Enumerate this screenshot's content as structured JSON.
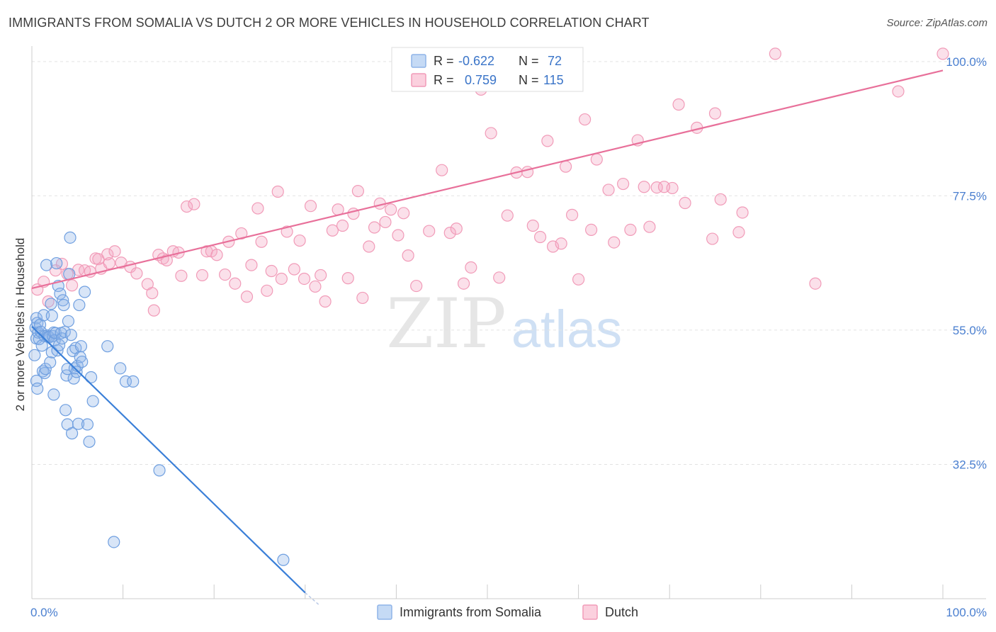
{
  "title": "IMMIGRANTS FROM SOMALIA VS DUTCH 2 OR MORE VEHICLES IN HOUSEHOLD CORRELATION CHART",
  "source": "Source: ZipAtlas.com",
  "watermark": {
    "zip": "ZIP",
    "atlas": "atlas"
  },
  "legend_top": [
    {
      "r_label": "R =",
      "r_value": "-0.622",
      "n_label": "N =",
      "n_value": "72",
      "color": "#8fb4e8",
      "fill": "#c5daf5"
    },
    {
      "r_label": "R =",
      "r_value": "0.759",
      "n_label": "N =",
      "n_value": "115",
      "color": "#f19bb8",
      "fill": "#fbd0de"
    }
  ],
  "legend_bottom": [
    {
      "label": "Immigrants from Somalia",
      "color": "#8fb4e8",
      "fill": "#c5daf5"
    },
    {
      "label": "Dutch",
      "color": "#f19bb8",
      "fill": "#fbd0de"
    }
  ],
  "chart_data": {
    "type": "scatter",
    "xlabel": "",
    "ylabel": "2 or more Vehicles in Household",
    "xlim": [
      0,
      100
    ],
    "ylim": [
      10,
      102
    ],
    "x_tick_labels": [
      {
        "value": 0,
        "label": "0.0%"
      },
      {
        "value": 100,
        "label": "100.0%"
      }
    ],
    "y_tick_labels": [
      {
        "value": 100,
        "label": "100.0%"
      },
      {
        "value": 77.5,
        "label": "77.5%"
      },
      {
        "value": 55,
        "label": "55.0%"
      },
      {
        "value": 32.5,
        "label": "32.5%"
      }
    ],
    "grid": true,
    "colors": {
      "somalia": "#3a7fd8",
      "dutch": "#e8709a"
    },
    "series": [
      {
        "name": "Immigrants from Somalia",
        "trend": {
          "x1": 0.0,
          "y1": 55.6,
          "x2": 30.0,
          "y2": 11.0,
          "dash_to_x": 31.5,
          "dash_to_y": 9.0
        },
        "points": [
          [
            0.3,
            50.8
          ],
          [
            0.4,
            55.4
          ],
          [
            0.5,
            57.0
          ],
          [
            0.5,
            53.6
          ],
          [
            0.5,
            46.5
          ],
          [
            0.6,
            45.2
          ],
          [
            0.6,
            56.2
          ],
          [
            0.7,
            54.6
          ],
          [
            0.8,
            53.5
          ],
          [
            0.9,
            55.9
          ],
          [
            1.0,
            54.7
          ],
          [
            1.1,
            52.4
          ],
          [
            1.2,
            48.1
          ],
          [
            1.3,
            57.5
          ],
          [
            1.4,
            54.0
          ],
          [
            1.4,
            47.8
          ],
          [
            1.5,
            48.5
          ],
          [
            1.6,
            65.9
          ],
          [
            1.7,
            54.1
          ],
          [
            1.8,
            53.9
          ],
          [
            1.9,
            53.8
          ],
          [
            2.0,
            49.6
          ],
          [
            2.1,
            59.4
          ],
          [
            2.2,
            57.4
          ],
          [
            2.2,
            51.3
          ],
          [
            2.3,
            54.0
          ],
          [
            2.4,
            44.2
          ],
          [
            2.4,
            54.6
          ],
          [
            2.5,
            53.3
          ],
          [
            2.6,
            54.5
          ],
          [
            2.7,
            66.2
          ],
          [
            2.8,
            51.6
          ],
          [
            2.9,
            62.4
          ],
          [
            3.0,
            52.5
          ],
          [
            3.1,
            61.1
          ],
          [
            3.2,
            54.5
          ],
          [
            3.3,
            53.6
          ],
          [
            3.4,
            60.0
          ],
          [
            3.5,
            59.2
          ],
          [
            3.6,
            54.7
          ],
          [
            3.7,
            41.6
          ],
          [
            3.8,
            47.4
          ],
          [
            3.9,
            48.5
          ],
          [
            3.9,
            39.2
          ],
          [
            4.0,
            56.5
          ],
          [
            4.1,
            64.4
          ],
          [
            4.2,
            70.5
          ],
          [
            4.3,
            54.2
          ],
          [
            4.4,
            37.7
          ],
          [
            4.5,
            51.5
          ],
          [
            4.6,
            46.9
          ],
          [
            4.7,
            48.6
          ],
          [
            4.8,
            52.0
          ],
          [
            4.9,
            48.0
          ],
          [
            5.0,
            49.0
          ],
          [
            5.1,
            39.3
          ],
          [
            5.2,
            59.2
          ],
          [
            5.3,
            50.5
          ],
          [
            5.4,
            52.3
          ],
          [
            5.5,
            49.7
          ],
          [
            5.8,
            61.4
          ],
          [
            6.1,
            39.2
          ],
          [
            6.5,
            47.1
          ],
          [
            6.7,
            43.1
          ],
          [
            6.3,
            36.3
          ],
          [
            8.3,
            52.3
          ],
          [
            9.7,
            48.6
          ],
          [
            10.3,
            46.4
          ],
          [
            11.1,
            46.4
          ],
          [
            14.0,
            31.5
          ],
          [
            9.0,
            19.5
          ],
          [
            27.6,
            16.5
          ]
        ]
      },
      {
        "name": "Dutch",
        "trend": {
          "x1": 0.0,
          "y1": 62.0,
          "x2": 100.0,
          "y2": 98.5
        },
        "points": [
          [
            0.6,
            61.8
          ],
          [
            1.3,
            63.1
          ],
          [
            1.8,
            59.8
          ],
          [
            2.6,
            65.0
          ],
          [
            3.3,
            66.1
          ],
          [
            3.9,
            64.4
          ],
          [
            4.4,
            62.5
          ],
          [
            5.1,
            65.1
          ],
          [
            5.8,
            65.0
          ],
          [
            6.4,
            64.8
          ],
          [
            7.0,
            67.0
          ],
          [
            7.3,
            66.9
          ],
          [
            7.6,
            65.3
          ],
          [
            8.3,
            67.7
          ],
          [
            8.5,
            66.2
          ],
          [
            9.1,
            68.2
          ],
          [
            9.8,
            66.3
          ],
          [
            10.8,
            65.6
          ],
          [
            11.5,
            64.5
          ],
          [
            12.7,
            62.7
          ],
          [
            13.2,
            61.2
          ],
          [
            13.4,
            58.3
          ],
          [
            13.9,
            67.6
          ],
          [
            14.4,
            67.0
          ],
          [
            14.8,
            66.7
          ],
          [
            15.5,
            68.2
          ],
          [
            16.1,
            68.0
          ],
          [
            16.4,
            64.1
          ],
          [
            17.0,
            75.7
          ],
          [
            17.8,
            76.1
          ],
          [
            18.7,
            64.2
          ],
          [
            19.2,
            68.2
          ],
          [
            19.7,
            68.2
          ],
          [
            20.3,
            67.6
          ],
          [
            21.2,
            64.3
          ],
          [
            21.6,
            69.8
          ],
          [
            22.3,
            62.8
          ],
          [
            23.0,
            71.2
          ],
          [
            23.6,
            60.6
          ],
          [
            24.1,
            65.9
          ],
          [
            24.8,
            75.4
          ],
          [
            25.2,
            69.8
          ],
          [
            25.8,
            61.6
          ],
          [
            26.3,
            64.9
          ],
          [
            27.0,
            78.2
          ],
          [
            27.4,
            63.6
          ],
          [
            28.0,
            71.5
          ],
          [
            28.8,
            65.2
          ],
          [
            29.4,
            70.0
          ],
          [
            29.9,
            63.6
          ],
          [
            30.6,
            75.8
          ],
          [
            31.1,
            62.3
          ],
          [
            31.7,
            64.2
          ],
          [
            32.2,
            59.8
          ],
          [
            33.0,
            71.7
          ],
          [
            33.6,
            75.2
          ],
          [
            34.1,
            72.5
          ],
          [
            34.7,
            63.7
          ],
          [
            35.3,
            74.5
          ],
          [
            35.8,
            78.3
          ],
          [
            36.3,
            60.4
          ],
          [
            37.0,
            69.0
          ],
          [
            37.6,
            72.2
          ],
          [
            38.2,
            76.2
          ],
          [
            38.8,
            73.1
          ],
          [
            39.4,
            75.2
          ],
          [
            40.2,
            70.9
          ],
          [
            40.8,
            74.6
          ],
          [
            41.3,
            67.5
          ],
          [
            42.2,
            62.4
          ],
          [
            43.6,
            71.6
          ],
          [
            45.0,
            81.8
          ],
          [
            45.9,
            71.3
          ],
          [
            46.6,
            72.0
          ],
          [
            47.4,
            62.8
          ],
          [
            48.2,
            65.5
          ],
          [
            49.3,
            95.3
          ],
          [
            50.4,
            88.0
          ],
          [
            51.3,
            63.8
          ],
          [
            52.2,
            74.2
          ],
          [
            53.2,
            81.4
          ],
          [
            54.4,
            81.5
          ],
          [
            55.0,
            72.5
          ],
          [
            55.8,
            70.6
          ],
          [
            56.6,
            86.7
          ],
          [
            57.2,
            69.0
          ],
          [
            58.1,
            69.5
          ],
          [
            58.6,
            82.4
          ],
          [
            59.3,
            74.3
          ],
          [
            60.7,
            90.3
          ],
          [
            61.4,
            71.8
          ],
          [
            62.0,
            83.6
          ],
          [
            63.3,
            78.5
          ],
          [
            63.9,
            69.7
          ],
          [
            64.9,
            79.5
          ],
          [
            65.7,
            71.8
          ],
          [
            66.5,
            86.8
          ],
          [
            67.2,
            79.0
          ],
          [
            67.8,
            72.3
          ],
          [
            68.6,
            78.9
          ],
          [
            70.3,
            78.8
          ],
          [
            71.0,
            92.8
          ],
          [
            71.7,
            76.3
          ],
          [
            73.0,
            88.9
          ],
          [
            74.7,
            70.3
          ],
          [
            75.0,
            91.3
          ],
          [
            75.6,
            76.9
          ],
          [
            77.6,
            71.4
          ],
          [
            78.0,
            74.7
          ],
          [
            81.6,
            101.3
          ],
          [
            95.1,
            95.0
          ],
          [
            100.0,
            101.3
          ],
          [
            69.4,
            79.0
          ],
          [
            60.0,
            63.5
          ],
          [
            86.0,
            62.8
          ]
        ]
      }
    ]
  }
}
